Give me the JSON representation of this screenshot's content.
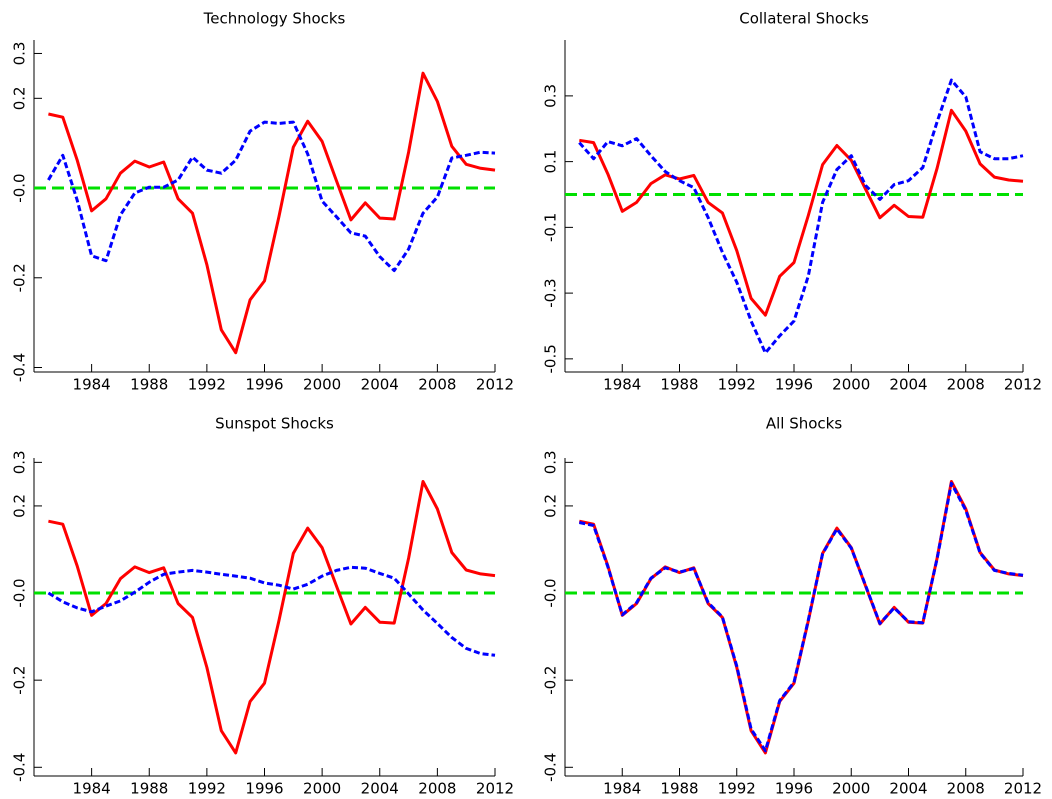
{
  "chart_data": [
    {
      "type": "line",
      "title": "Technology Shocks",
      "x": [
        1981,
        1982,
        1983,
        1984,
        1985,
        1986,
        1987,
        1988,
        1989,
        1990,
        1991,
        1992,
        1993,
        1994,
        1995,
        1996,
        1997,
        1998,
        1999,
        2000,
        2001,
        2002,
        2003,
        2004,
        2005,
        2006,
        2007,
        2008,
        2009,
        2010,
        2011,
        2012
      ],
      "xlim": [
        1980,
        2012
      ],
      "xticks": [
        1984,
        1988,
        1992,
        1996,
        2000,
        2004,
        2008,
        2012
      ],
      "ylim": [
        -0.41,
        0.33
      ],
      "yticks": [
        0.3,
        0.2,
        {
          "value": 0,
          "label": "-0.0"
        },
        -0.2,
        -0.4
      ],
      "zero_line": 0,
      "zero_line_color": "#00e000",
      "series": [
        {
          "color": "#ff0000",
          "style": "solid",
          "values": [
            0.165,
            0.158,
            0.062,
            -0.051,
            -0.024,
            0.033,
            0.06,
            0.047,
            0.058,
            -0.024,
            -0.056,
            -0.171,
            -0.316,
            -0.367,
            -0.249,
            -0.207,
            -0.064,
            0.091,
            0.149,
            0.104,
            0.016,
            -0.071,
            -0.033,
            -0.067,
            -0.069,
            0.08,
            0.256,
            0.193,
            0.093,
            0.053,
            0.044,
            0.04
          ]
        },
        {
          "color": "#0000ff",
          "style": "dashed",
          "values": [
            0.018,
            0.073,
            -0.027,
            -0.151,
            -0.162,
            -0.06,
            -0.011,
            0.002,
            0.002,
            0.018,
            0.069,
            0.04,
            0.033,
            0.062,
            0.127,
            0.147,
            0.144,
            0.147,
            0.076,
            -0.029,
            -0.064,
            -0.1,
            -0.107,
            -0.153,
            -0.184,
            -0.136,
            -0.056,
            -0.02,
            0.067,
            0.073,
            0.08,
            0.078
          ]
        }
      ]
    },
    {
      "type": "line",
      "title": "Collateral Shocks",
      "x": [
        1981,
        1982,
        1983,
        1984,
        1985,
        1986,
        1987,
        1988,
        1989,
        1990,
        1991,
        1992,
        1993,
        1994,
        1995,
        1996,
        1997,
        1998,
        1999,
        2000,
        2001,
        2002,
        2003,
        2004,
        2005,
        2006,
        2007,
        2008,
        2009,
        2010,
        2011,
        2012
      ],
      "xlim": [
        1980,
        2012
      ],
      "xticks": [
        1984,
        1988,
        1992,
        1996,
        2000,
        2004,
        2008,
        2012
      ],
      "ylim": [
        -0.54,
        0.47
      ],
      "yticks": [
        0.3,
        0.1,
        -0.1,
        -0.3,
        -0.5
      ],
      "zero_line": 0,
      "zero_line_color": "#00e000",
      "series": [
        {
          "color": "#ff0000",
          "style": "solid",
          "values": [
            0.165,
            0.158,
            0.062,
            -0.051,
            -0.024,
            0.033,
            0.06,
            0.047,
            0.058,
            -0.024,
            -0.056,
            -0.171,
            -0.316,
            -0.367,
            -0.249,
            -0.207,
            -0.064,
            0.091,
            0.149,
            0.104,
            0.016,
            -0.071,
            -0.033,
            -0.067,
            -0.069,
            0.08,
            0.256,
            0.193,
            0.093,
            0.053,
            0.044,
            0.04
          ]
        },
        {
          "color": "#0000ff",
          "style": "dashed",
          "values": [
            0.158,
            0.109,
            0.161,
            0.148,
            0.17,
            0.118,
            0.07,
            0.042,
            0.021,
            -0.07,
            -0.176,
            -0.267,
            -0.385,
            -0.482,
            -0.43,
            -0.385,
            -0.248,
            -0.024,
            0.076,
            0.118,
            0.027,
            -0.015,
            0.03,
            0.042,
            0.082,
            0.221,
            0.348,
            0.297,
            0.13,
            0.109,
            0.109,
            0.118
          ]
        }
      ]
    },
    {
      "type": "line",
      "title": "Sunspot Shocks",
      "x": [
        1981,
        1982,
        1983,
        1984,
        1985,
        1986,
        1987,
        1988,
        1989,
        1990,
        1991,
        1992,
        1993,
        1994,
        1995,
        1996,
        1997,
        1998,
        1999,
        2000,
        2001,
        2002,
        2003,
        2004,
        2005,
        2006,
        2007,
        2008,
        2009,
        2010,
        2011,
        2012
      ],
      "xlim": [
        1980,
        2012
      ],
      "xticks": [
        1984,
        1988,
        1992,
        1996,
        2000,
        2004,
        2008,
        2012
      ],
      "ylim": [
        -0.42,
        0.31
      ],
      "yticks": [
        0.3,
        0.2,
        {
          "value": 0,
          "label": "-0.0"
        },
        -0.2,
        -0.4
      ],
      "zero_line": 0,
      "zero_line_color": "#00e000",
      "series": [
        {
          "color": "#ff0000",
          "style": "solid",
          "values": [
            0.165,
            0.158,
            0.062,
            -0.051,
            -0.024,
            0.033,
            0.06,
            0.047,
            0.058,
            -0.024,
            -0.056,
            -0.171,
            -0.316,
            -0.367,
            -0.249,
            -0.207,
            -0.064,
            0.091,
            0.149,
            0.104,
            0.016,
            -0.071,
            -0.033,
            -0.067,
            -0.069,
            0.08,
            0.256,
            0.193,
            0.093,
            0.053,
            0.044,
            0.04
          ]
        },
        {
          "color": "#0000ff",
          "style": "dashed",
          "values": [
            0,
            -0.02,
            -0.034,
            -0.043,
            -0.03,
            -0.018,
            0.002,
            0.025,
            0.043,
            0.048,
            0.052,
            0.048,
            0.043,
            0.039,
            0.034,
            0.023,
            0.018,
            0.009,
            0.02,
            0.039,
            0.052,
            0.059,
            0.057,
            0.045,
            0.034,
            -0.002,
            -0.039,
            -0.07,
            -0.102,
            -0.127,
            -0.139,
            -0.143
          ]
        }
      ]
    },
    {
      "type": "line",
      "title": "All Shocks",
      "x": [
        1981,
        1982,
        1983,
        1984,
        1985,
        1986,
        1987,
        1988,
        1989,
        1990,
        1991,
        1992,
        1993,
        1994,
        1995,
        1996,
        1997,
        1998,
        1999,
        2000,
        2001,
        2002,
        2003,
        2004,
        2005,
        2006,
        2007,
        2008,
        2009,
        2010,
        2011,
        2012
      ],
      "xlim": [
        1980,
        2012
      ],
      "xticks": [
        1984,
        1988,
        1992,
        1996,
        2000,
        2004,
        2008,
        2012
      ],
      "ylim": [
        -0.42,
        0.31
      ],
      "yticks": [
        0.3,
        0.2,
        {
          "value": 0,
          "label": "-0.0"
        },
        -0.2,
        -0.4
      ],
      "zero_line": 0,
      "zero_line_color": "#00e000",
      "series": [
        {
          "color": "#ff0000",
          "style": "solid",
          "values": [
            0.165,
            0.158,
            0.062,
            -0.051,
            -0.024,
            0.033,
            0.06,
            0.047,
            0.058,
            -0.024,
            -0.056,
            -0.171,
            -0.316,
            -0.367,
            -0.249,
            -0.207,
            -0.064,
            0.091,
            0.149,
            0.104,
            0.016,
            -0.071,
            -0.033,
            -0.067,
            -0.069,
            0.08,
            0.256,
            0.193,
            0.093,
            0.053,
            0.044,
            0.04
          ]
        },
        {
          "color": "#0000ff",
          "style": "dashed",
          "values": [
            0.162,
            0.155,
            0.06,
            -0.05,
            -0.022,
            0.034,
            0.058,
            0.048,
            0.056,
            -0.022,
            -0.055,
            -0.168,
            -0.312,
            -0.362,
            -0.247,
            -0.205,
            -0.062,
            0.09,
            0.147,
            0.103,
            0.017,
            -0.07,
            -0.034,
            -0.066,
            -0.068,
            0.079,
            0.252,
            0.19,
            0.092,
            0.052,
            0.045,
            0.041
          ]
        }
      ]
    }
  ]
}
